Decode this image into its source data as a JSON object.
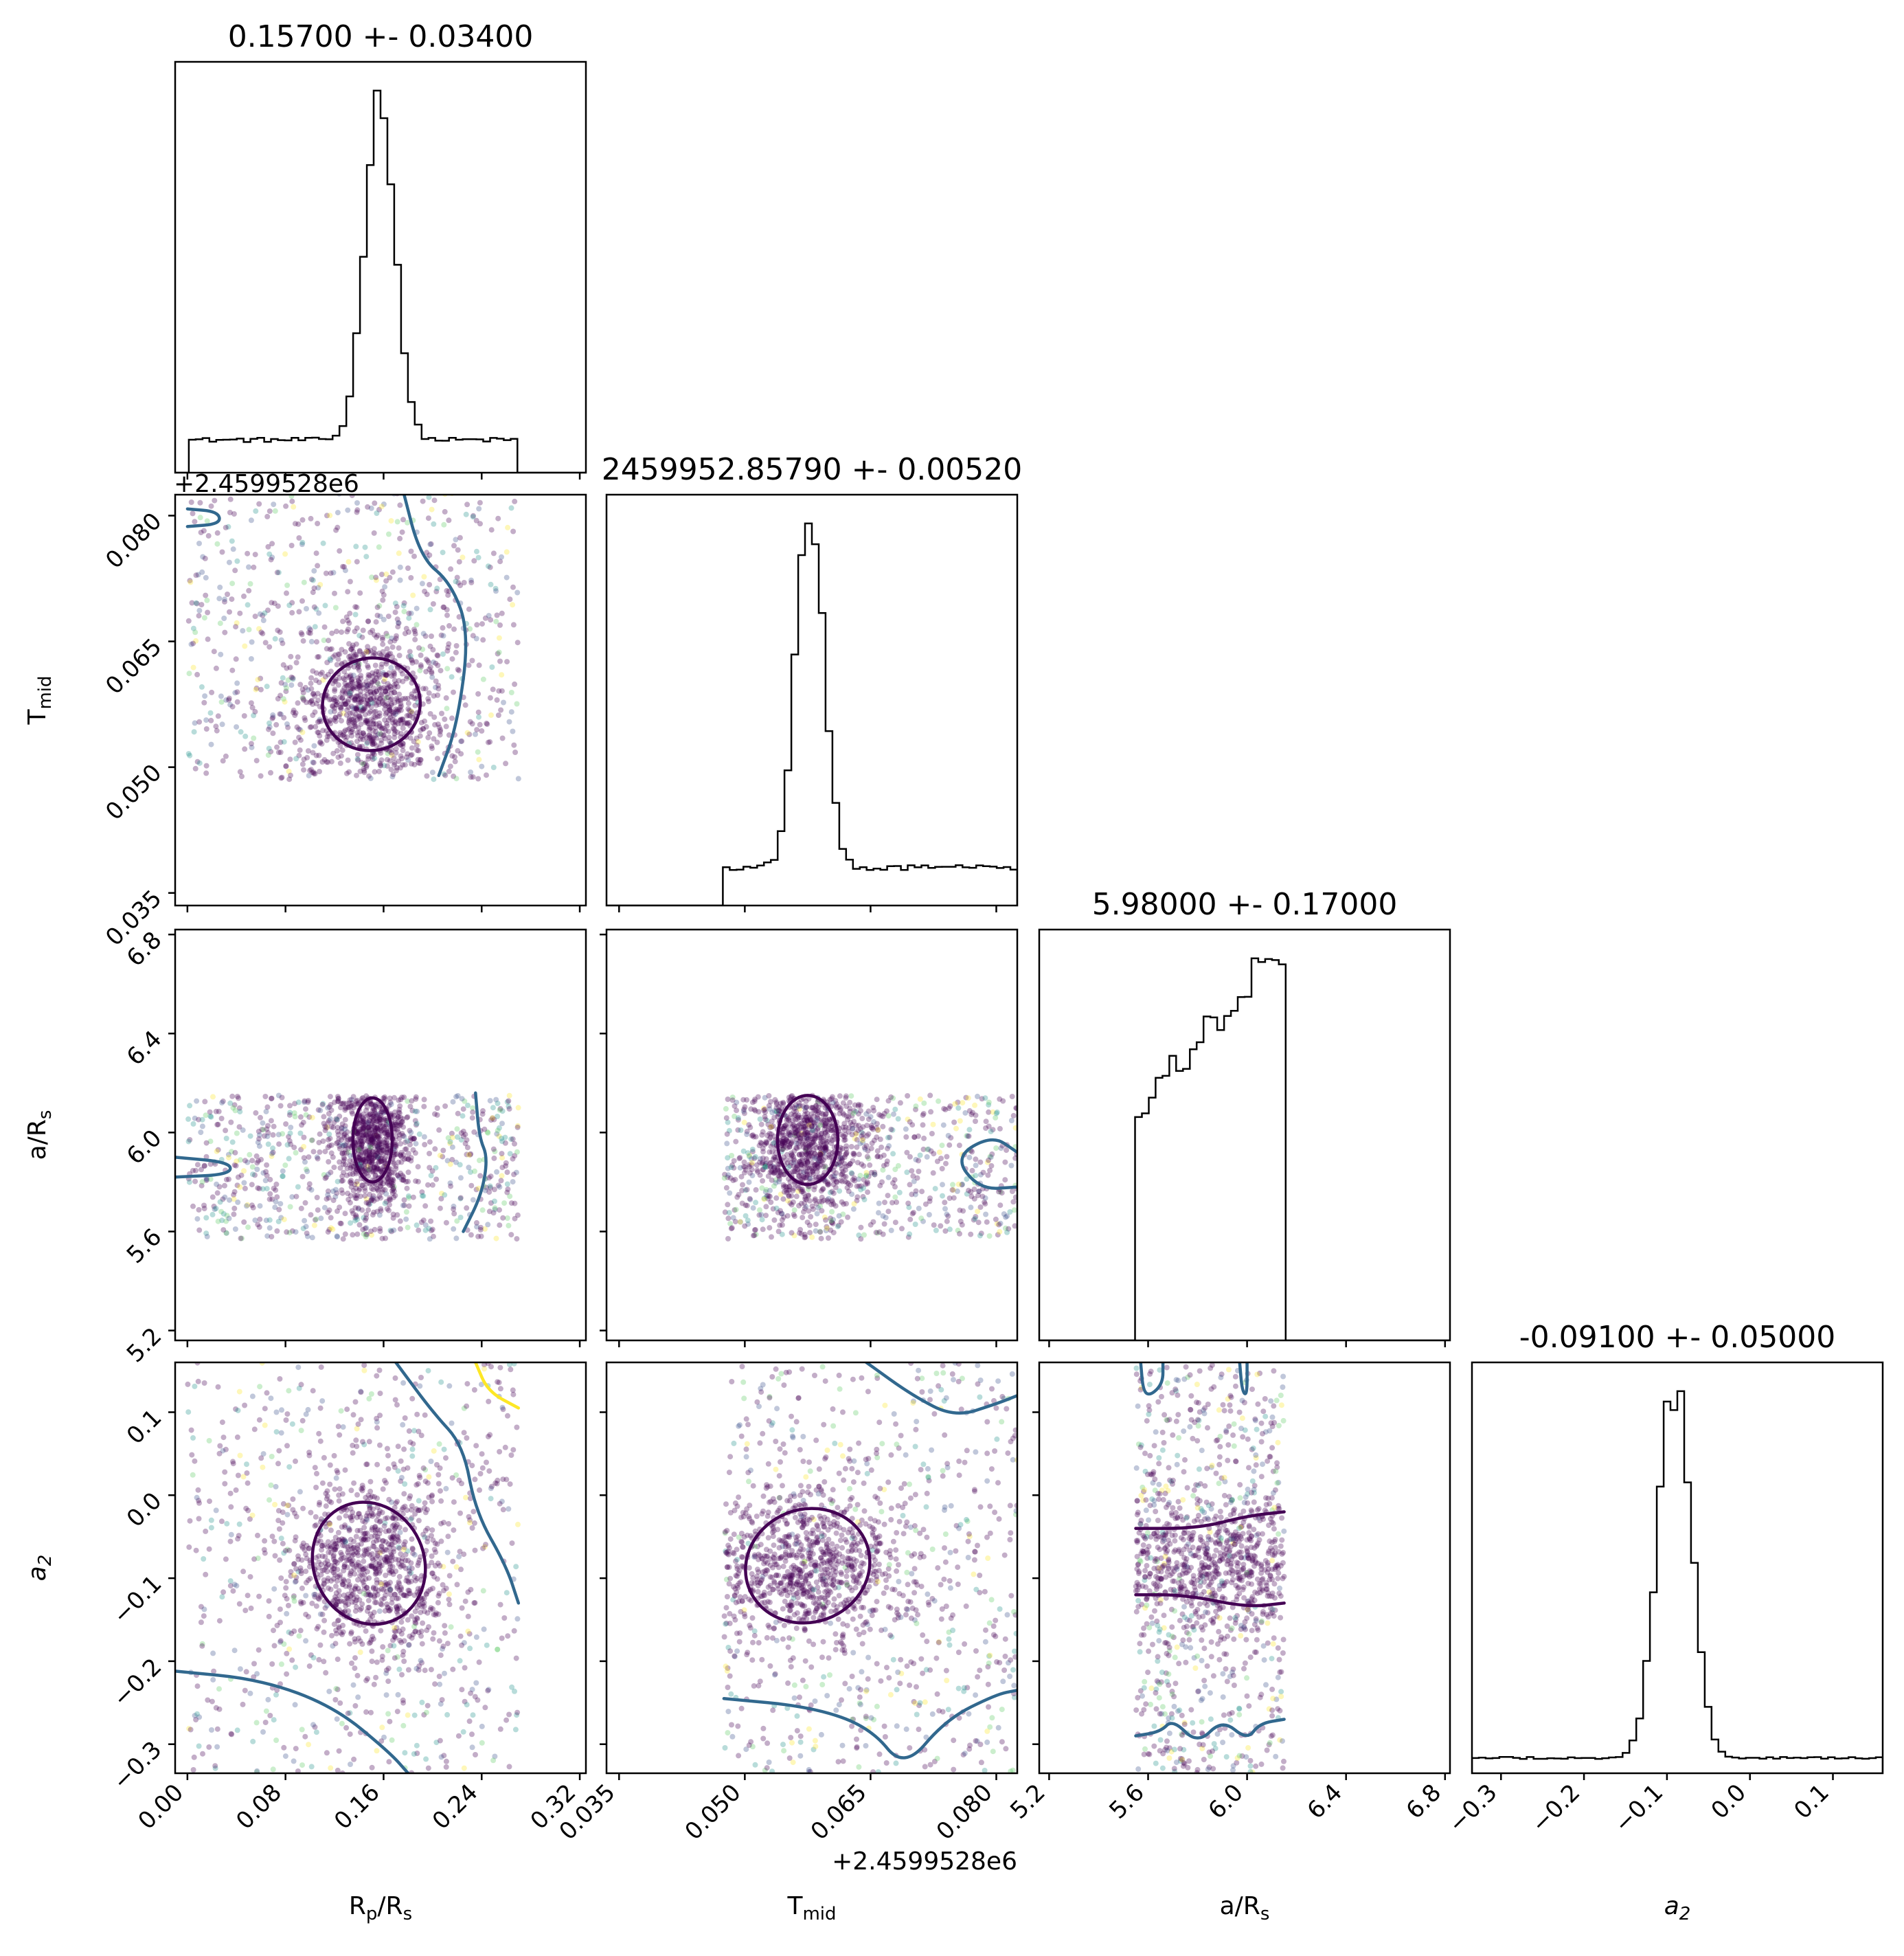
{
  "chart_data": {
    "type": "scatter",
    "kind": "corner-plot",
    "parameters": [
      {
        "key": "rp",
        "label": "R",
        "label_sub": "p",
        "label_rest": "/R",
        "label_sub2": "s",
        "range": [
          -0.01,
          0.325
        ],
        "ticks": [
          "0.00",
          "0.08",
          "0.16",
          "0.24",
          "0.32"
        ],
        "tick_values": [
          0.0,
          0.08,
          0.16,
          0.24,
          0.32
        ],
        "title": "0.15700 +- 0.03400"
      },
      {
        "key": "tmid",
        "label": "T",
        "label_sub": "mid",
        "label_rest": "",
        "label_sub2": "",
        "range": [
          0.0335,
          0.0825
        ],
        "ticks": [
          "0.035",
          "0.050",
          "0.065",
          "0.080"
        ],
        "tick_values": [
          0.035,
          0.05,
          0.065,
          0.08
        ],
        "title": "2459952.85790 +- 0.00520",
        "offset_text": "+2.4599528e6"
      },
      {
        "key": "ars",
        "label": "a/R",
        "label_sub": "s",
        "label_rest": "",
        "label_sub2": "",
        "range": [
          5.16,
          6.82
        ],
        "ticks": [
          "5.2",
          "5.6",
          "6.0",
          "6.4",
          "6.8"
        ],
        "tick_values": [
          5.2,
          5.6,
          6.0,
          6.4,
          6.8
        ],
        "title": "5.98000 +- 0.17000"
      },
      {
        "key": "a2",
        "label": "a",
        "label_sub": "2",
        "label_rest": "",
        "label_sub2": "",
        "label_italic": true,
        "range": [
          -0.335,
          0.16
        ],
        "ticks": [
          "−0.3",
          "−0.2",
          "−0.1",
          "0.0",
          "0.1"
        ],
        "tick_values": [
          -0.3,
          -0.2,
          -0.1,
          0.0,
          0.1
        ],
        "title": "-0.09100 +- 0.05000"
      }
    ],
    "marginals": [
      {
        "param": "rp",
        "peak": 0.157,
        "sigma": 0.012,
        "tail_low": 0.0,
        "tail_high": 0.27,
        "tail_level": 0.09
      },
      {
        "param": "tmid",
        "peak": 0.0578,
        "sigma": 0.0016,
        "tail_low": 0.0475,
        "tail_high": 0.0825,
        "tail_level": 0.1
      },
      {
        "param": "ars",
        "shape": "ramp",
        "low": 5.55,
        "high": 6.15,
        "start_level": 0.55,
        "end_level": 1.0
      },
      {
        "param": "a2",
        "peak": -0.091,
        "sigma": 0.02,
        "tail_low": -0.335,
        "tail_high": 0.16,
        "tail_level": 0.04
      }
    ],
    "contours": [
      {
        "row": "tmid",
        "col": "rp",
        "color": "#440154",
        "type": "ellipse",
        "cx": 0.15,
        "cy": 0.0575,
        "rx": 0.04,
        "ry": 0.0055,
        "angle": -15
      },
      {
        "row": "a2",
        "col": "rp",
        "color": "#440154",
        "type": "ellipse",
        "cx": 0.148,
        "cy": -0.082,
        "rx": 0.045,
        "ry": 0.075,
        "angle": -25
      },
      {
        "row": "ars",
        "col": "tmid",
        "color": "#440154",
        "type": "ellipse",
        "cx": 0.0575,
        "cy": 5.97,
        "rx": 0.0036,
        "ry": 0.18,
        "angle": 0
      },
      {
        "row": "a2",
        "col": "tmid",
        "color": "#440154",
        "type": "ellipse",
        "cx": 0.0575,
        "cy": -0.085,
        "rx": 0.0075,
        "ry": 0.068,
        "angle": -20
      },
      {
        "row": "ars",
        "col": "rp",
        "color": "#440154",
        "type": "ellipse",
        "cx": 0.151,
        "cy": 5.97,
        "rx": 0.016,
        "ry": 0.17,
        "angle": 0
      },
      {
        "row": "tmid",
        "col": "rp",
        "color": "#31688e",
        "type": "line",
        "points": [
          [
            0.175,
            0.0835
          ],
          [
            0.19,
            0.075
          ],
          [
            0.215,
            0.072
          ],
          [
            0.23,
            0.066
          ],
          [
            0.22,
            0.055
          ],
          [
            0.205,
            0.049
          ]
        ]
      },
      {
        "row": "tmid",
        "col": "rp",
        "color": "#31688e",
        "type": "line",
        "points": [
          [
            0.0,
            0.0808
          ],
          [
            0.025,
            0.0805
          ],
          [
            0.027,
            0.079
          ],
          [
            0.0,
            0.0787
          ]
        ]
      },
      {
        "row": "ars",
        "col": "rp",
        "color": "#31688e",
        "type": "line",
        "points": [
          [
            0.235,
            6.16
          ],
          [
            0.238,
            5.98
          ],
          [
            0.245,
            5.9
          ],
          [
            0.24,
            5.75
          ],
          [
            0.225,
            5.6
          ]
        ]
      },
      {
        "row": "ars",
        "col": "rp",
        "color": "#31688e",
        "type": "line",
        "points": [
          [
            -0.01,
            5.9
          ],
          [
            0.035,
            5.88
          ],
          [
            0.035,
            5.83
          ],
          [
            -0.01,
            5.82
          ]
        ]
      },
      {
        "row": "a2",
        "col": "rp",
        "color": "#31688e",
        "type": "line",
        "points": [
          [
            0.17,
            0.16
          ],
          [
            0.2,
            0.1
          ],
          [
            0.225,
            0.06
          ],
          [
            0.235,
            -0.02
          ],
          [
            0.26,
            -0.085
          ],
          [
            0.27,
            -0.13
          ]
        ]
      },
      {
        "row": "a2",
        "col": "rp",
        "color": "#31688e",
        "type": "line",
        "points": [
          [
            -0.01,
            -0.212
          ],
          [
            0.06,
            -0.222
          ],
          [
            0.12,
            -0.255
          ],
          [
            0.165,
            -0.31
          ],
          [
            0.18,
            -0.335
          ]
        ]
      },
      {
        "row": "a2",
        "col": "rp",
        "color": "#fde725",
        "type": "line",
        "points": [
          [
            0.235,
            0.16
          ],
          [
            0.245,
            0.125
          ],
          [
            0.27,
            0.105
          ]
        ]
      },
      {
        "row": "ars",
        "col": "tmid",
        "color": "#31688e",
        "type": "line",
        "points": [
          [
            0.0825,
            5.92
          ],
          [
            0.0795,
            5.99
          ],
          [
            0.075,
            5.9
          ],
          [
            0.078,
            5.77
          ],
          [
            0.0825,
            5.78
          ]
        ]
      },
      {
        "row": "a2",
        "col": "tmid",
        "color": "#31688e",
        "type": "line",
        "points": [
          [
            0.0645,
            0.16
          ],
          [
            0.07,
            0.12
          ],
          [
            0.075,
            0.094
          ],
          [
            0.08,
            0.11
          ],
          [
            0.0825,
            0.12
          ]
        ]
      },
      {
        "row": "a2",
        "col": "tmid",
        "color": "#31688e",
        "type": "line",
        "points": [
          [
            0.0475,
            -0.245
          ],
          [
            0.058,
            -0.255
          ],
          [
            0.065,
            -0.28
          ],
          [
            0.069,
            -0.33
          ],
          [
            0.074,
            -0.27
          ],
          [
            0.08,
            -0.24
          ],
          [
            0.0825,
            -0.235
          ]
        ]
      },
      {
        "row": "a2",
        "col": "ars",
        "color": "#440154",
        "type": "line",
        "points": [
          [
            5.55,
            -0.04
          ],
          [
            5.8,
            -0.04
          ],
          [
            6.0,
            -0.025
          ],
          [
            6.15,
            -0.02
          ]
        ]
      },
      {
        "row": "a2",
        "col": "ars",
        "color": "#440154",
        "type": "line",
        "points": [
          [
            5.55,
            -0.12
          ],
          [
            5.75,
            -0.12
          ],
          [
            6.0,
            -0.135
          ],
          [
            6.15,
            -0.13
          ]
        ]
      },
      {
        "row": "a2",
        "col": "ars",
        "color": "#31688e",
        "type": "line",
        "points": [
          [
            5.57,
            0.16
          ],
          [
            5.58,
            0.125
          ],
          [
            5.61,
            0.12
          ],
          [
            5.66,
            0.135
          ],
          [
            5.66,
            0.16
          ]
        ]
      },
      {
        "row": "a2",
        "col": "ars",
        "color": "#31688e",
        "type": "line",
        "points": [
          [
            5.97,
            0.16
          ],
          [
            5.98,
            0.125
          ],
          [
            6.0,
            0.12
          ],
          [
            6.0,
            0.16
          ]
        ]
      },
      {
        "row": "a2",
        "col": "ars",
        "color": "#31688e",
        "type": "line",
        "points": [
          [
            5.55,
            -0.29
          ],
          [
            5.65,
            -0.285
          ],
          [
            5.7,
            -0.27
          ],
          [
            5.8,
            -0.3
          ],
          [
            5.9,
            -0.27
          ],
          [
            6.0,
            -0.295
          ],
          [
            6.05,
            -0.275
          ],
          [
            6.15,
            -0.27
          ]
        ]
      }
    ],
    "scatter_clouds": [
      {
        "row": "tmid",
        "col": "rp",
        "center": [
          0.15,
          0.0575
        ],
        "sd": [
          0.03,
          0.005
        ],
        "box_x": [
          0.0,
          0.27
        ],
        "box_y": [
          0.0485,
          0.0835
        ]
      },
      {
        "row": "ars",
        "col": "rp",
        "center": [
          0.15,
          5.97
        ],
        "sd": [
          0.015,
          0.15
        ],
        "box_x": [
          0.0,
          0.27
        ],
        "box_y": [
          5.57,
          6.15
        ]
      },
      {
        "row": "a2",
        "col": "rp",
        "center": [
          0.148,
          -0.082
        ],
        "sd": [
          0.035,
          0.055
        ],
        "box_x": [
          0.0,
          0.27
        ],
        "box_y": [
          -0.335,
          0.16
        ]
      },
      {
        "row": "ars",
        "col": "tmid",
        "center": [
          0.0575,
          5.97
        ],
        "sd": [
          0.0035,
          0.15
        ],
        "box_x": [
          0.0475,
          0.0825
        ],
        "box_y": [
          5.57,
          6.15
        ]
      },
      {
        "row": "a2",
        "col": "tmid",
        "center": [
          0.0575,
          -0.085
        ],
        "sd": [
          0.006,
          0.05
        ],
        "box_x": [
          0.0475,
          0.0825
        ],
        "box_y": [
          -0.335,
          0.16
        ]
      },
      {
        "row": "a2",
        "col": "ars",
        "center": [
          5.85,
          -0.08
        ],
        "sd": [
          0.3,
          0.04
        ],
        "box_x": [
          5.55,
          6.15
        ],
        "box_y": [
          -0.335,
          0.16
        ]
      }
    ],
    "point_colors": [
      "#440154",
      "#3b528b",
      "#21918c",
      "#5ec962",
      "#fde725"
    ],
    "frame_color": "#000000",
    "grid": false
  }
}
